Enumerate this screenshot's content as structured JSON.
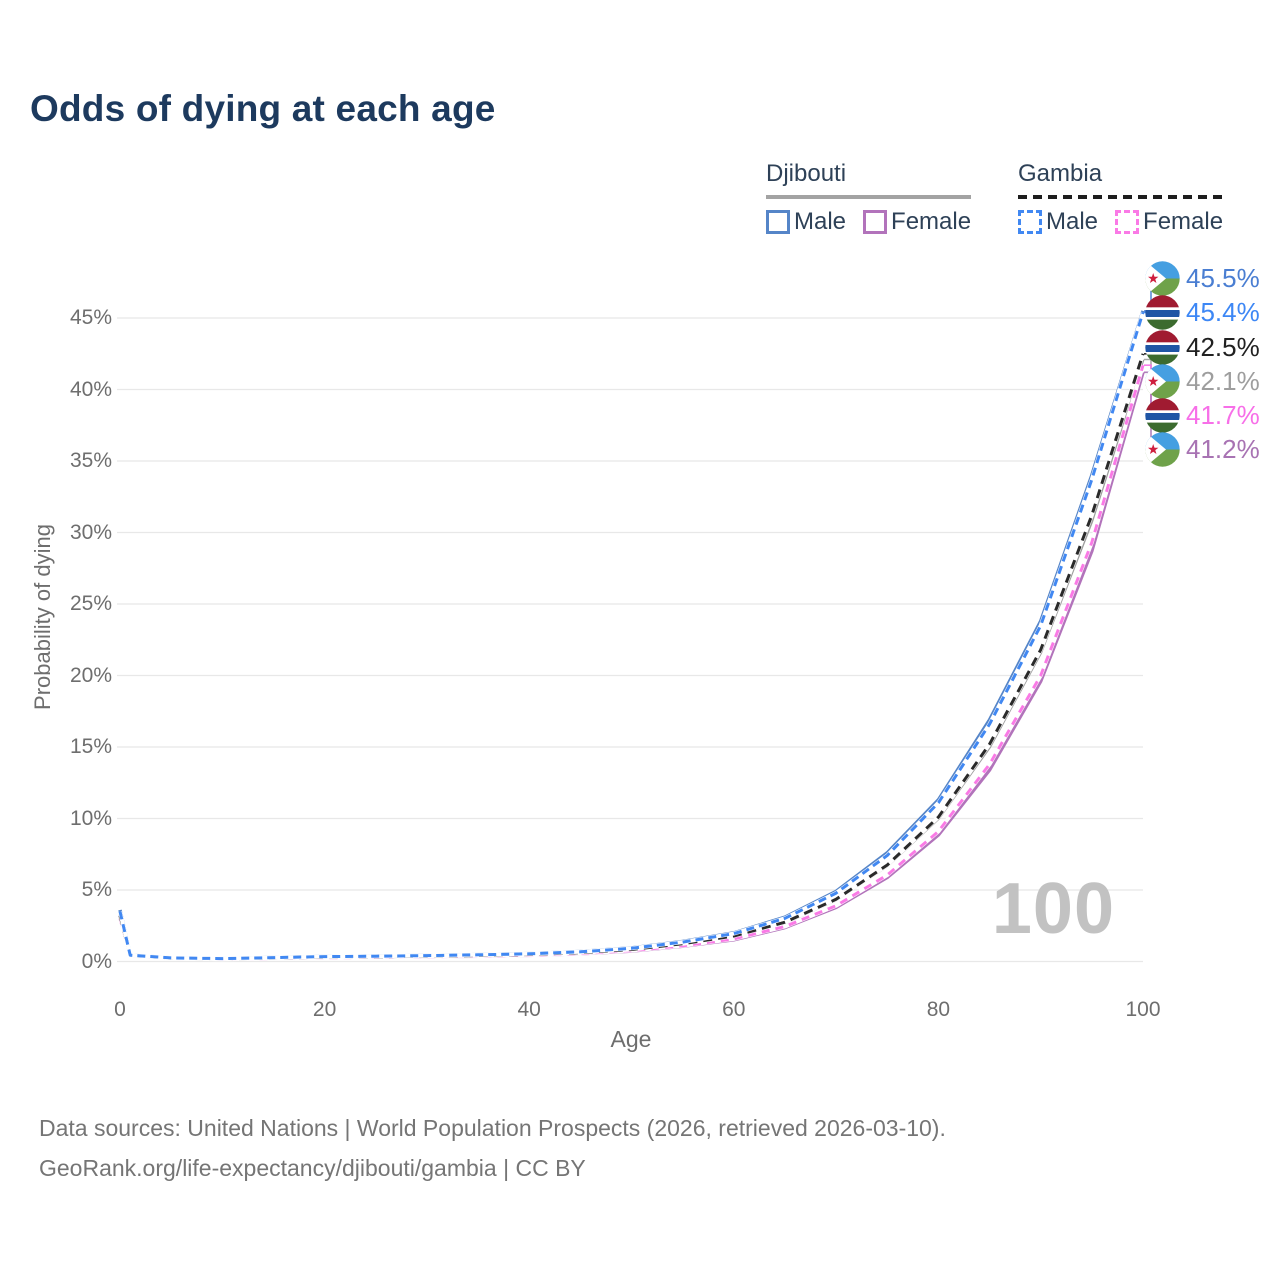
{
  "title": "Odds of dying at each age",
  "watermark": "100",
  "legend": {
    "djibouti": {
      "title": "Djibouti",
      "male": "Male",
      "female": "Female"
    },
    "gambia": {
      "title": "Gambia",
      "male": "Male",
      "female": "Female"
    }
  },
  "footer": {
    "line1": "Data sources: United Nations | World Population Prospects (2026, retrieved 2026-03-10).",
    "line2": "GeoRank.org/life-expectancy/djibouti/gambia | CC BY"
  },
  "colors": {
    "djibouti_male": "#5585c8",
    "djibouti_female": "#c383c3",
    "djibouti_total": "#9e9e9e",
    "gambia_male": "#4188f2",
    "gambia_female": "#fa7ae6",
    "gambia_total": "#2a2a2a",
    "grid": "#e8e8e8",
    "title_text": "#1d3a5e",
    "axis_text": "#6e6e6e"
  },
  "flags": {
    "djibouti": {
      "blue": "#459fe1",
      "green": "#6fa24a",
      "white": "#ffffff",
      "star_red": "#cf1f3f"
    },
    "gambia": {
      "red": "#a01b31",
      "blue": "#1f55a5",
      "green": "#3c6b2f",
      "white": "#ffffff"
    }
  },
  "chart_data": {
    "type": "line",
    "title": "Odds of dying at each age",
    "xlabel": "Age",
    "ylabel": "Probability of dying",
    "xlim": [
      0,
      100
    ],
    "ylim": [
      0,
      47
    ],
    "grid": "horizontal",
    "legend_position": "top-right",
    "x_ticks": [
      0,
      20,
      40,
      60,
      80,
      100
    ],
    "x_tick_labels": [
      "0",
      "20",
      "40",
      "60",
      "80",
      "100"
    ],
    "y_tick_values": [
      0,
      5,
      10,
      15,
      20,
      25,
      30,
      35,
      40,
      45
    ],
    "y_tick_labels": [
      "0%",
      "5%",
      "10%",
      "15%",
      "20%",
      "25%",
      "30%",
      "35%",
      "40%",
      "45%"
    ],
    "x": [
      0,
      1,
      5,
      10,
      15,
      20,
      25,
      30,
      35,
      40,
      45,
      50,
      55,
      60,
      65,
      70,
      75,
      80,
      85,
      90,
      95,
      100
    ],
    "series": [
      {
        "id": "djibouti-female",
        "name": "Djibouti Female",
        "country": "djibouti",
        "style": "solid",
        "color": "#b273bb",
        "width": 3.5,
        "flag": "djibouti",
        "label_color": "#a873b3",
        "end_label": "41.2%",
        "values": [
          3.1,
          0.4,
          0.22,
          0.17,
          0.22,
          0.27,
          0.3,
          0.32,
          0.37,
          0.43,
          0.54,
          0.73,
          1.06,
          1.52,
          2.38,
          3.78,
          5.88,
          8.85,
          13.4,
          19.6,
          28.7,
          41.2
        ]
      },
      {
        "id": "djibouti-total",
        "name": "Djibouti",
        "country": "djibouti",
        "style": "solid",
        "color": "#9e9e9e",
        "width": 3,
        "flag": "djibouti",
        "label_color": "#9e9e9e",
        "end_label": "42.1%",
        "values": [
          3.3,
          0.42,
          0.23,
          0.18,
          0.25,
          0.31,
          0.34,
          0.37,
          0.42,
          0.49,
          0.61,
          0.83,
          1.22,
          1.76,
          2.7,
          4.32,
          6.7,
          10.0,
          15.0,
          21.6,
          30.8,
          42.1
        ]
      },
      {
        "id": "djibouti-male",
        "name": "Djibouti Male",
        "country": "djibouti",
        "style": "solid",
        "color": "#5585c8",
        "width": 3.5,
        "flag": "djibouti",
        "label_color": "#4a7ed2",
        "end_label": "45.5%",
        "values": [
          3.6,
          0.45,
          0.25,
          0.2,
          0.28,
          0.35,
          0.38,
          0.42,
          0.48,
          0.55,
          0.7,
          0.95,
          1.4,
          2.0,
          3.1,
          4.9,
          7.6,
          11.3,
          16.9,
          23.8,
          34.0,
          45.5
        ]
      },
      {
        "id": "gambia-female",
        "name": "Gambia Female",
        "country": "gambia",
        "style": "dashed",
        "color": "#fa7ae6",
        "width": 3,
        "dash": "8 6",
        "flag": "gambia",
        "label_color": "#f76fe8",
        "end_label": "41.7%",
        "values": [
          3.0,
          0.39,
          0.21,
          0.16,
          0.21,
          0.26,
          0.29,
          0.33,
          0.38,
          0.44,
          0.56,
          0.76,
          1.1,
          1.58,
          2.45,
          3.9,
          6.05,
          9.1,
          13.8,
          20.0,
          29.3,
          41.7
        ]
      },
      {
        "id": "gambia-total",
        "name": "Gambia",
        "country": "gambia",
        "style": "dashed",
        "color": "#2a2a2a",
        "width": 3,
        "dash": "9 6",
        "flag": "gambia",
        "label_color": "#212121",
        "end_label": "42.5%",
        "values": [
          3.2,
          0.41,
          0.23,
          0.18,
          0.24,
          0.3,
          0.33,
          0.37,
          0.42,
          0.49,
          0.62,
          0.84,
          1.24,
          1.78,
          2.75,
          4.35,
          6.75,
          10.1,
          15.2,
          21.8,
          31.2,
          42.5
        ]
      },
      {
        "id": "gambia-male",
        "name": "Gambia Male",
        "country": "gambia",
        "style": "dashed",
        "color": "#4188f2",
        "width": 3,
        "dash": "8 5",
        "flag": "gambia",
        "label_color": "#3d87f5",
        "end_label": "45.4%",
        "values": [
          3.5,
          0.44,
          0.25,
          0.2,
          0.27,
          0.34,
          0.37,
          0.41,
          0.47,
          0.54,
          0.68,
          0.92,
          1.36,
          1.95,
          3.02,
          4.78,
          7.42,
          11.1,
          16.6,
          23.5,
          33.7,
          45.4
        ]
      }
    ]
  }
}
